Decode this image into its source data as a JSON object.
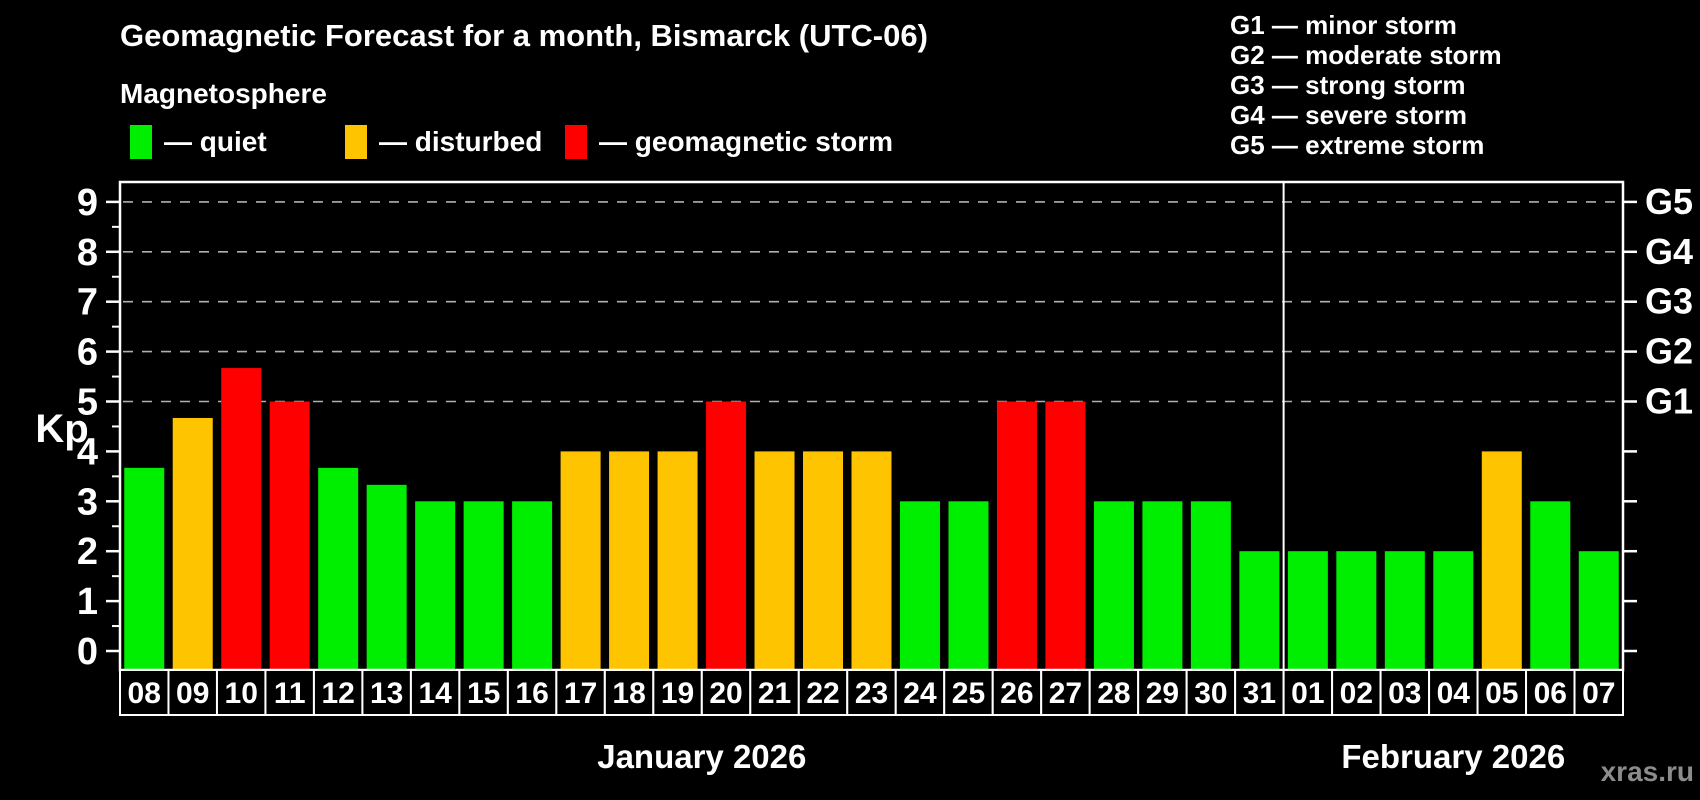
{
  "header": {
    "title": "Geomagnetic Forecast for a month, Bismarck (UTC-06)",
    "subtitle": "Magnetosphere"
  },
  "legend": {
    "items": [
      {
        "key": "quiet",
        "label": "— quiet"
      },
      {
        "key": "disturbed",
        "label": "— disturbed"
      },
      {
        "key": "storm",
        "label": "— geomagnetic storm"
      }
    ]
  },
  "g_legend": {
    "items": [
      "G1 — minor storm",
      "G2 — moderate storm",
      "G3 — strong storm",
      "G4 — severe storm",
      "G5 — extreme storm"
    ]
  },
  "watermark": "xras.ru",
  "colors": {
    "quiet": "#00ee00",
    "disturbed": "#ffc400",
    "storm": "#ff0000",
    "axis": "#ffffff",
    "grid": "#b0b0b0",
    "background": "#000000",
    "watermark": "#8c8c8c"
  },
  "chart_data": {
    "type": "bar",
    "title": "Geomagnetic Forecast for a month, Bismarck (UTC-06)",
    "ylabel": "Kp",
    "ylim": [
      0,
      9
    ],
    "yticks": [
      0,
      1,
      2,
      3,
      4,
      5,
      6,
      7,
      8,
      9
    ],
    "grid_levels": [
      5,
      6,
      7,
      8,
      9
    ],
    "right_axis": [
      {
        "label": "G5",
        "kp": 9
      },
      {
        "label": "G4",
        "kp": 8
      },
      {
        "label": "G3",
        "kp": 7
      },
      {
        "label": "G2",
        "kp": 6
      },
      {
        "label": "G1",
        "kp": 5
      }
    ],
    "categories": [
      "08",
      "09",
      "10",
      "11",
      "12",
      "13",
      "14",
      "15",
      "16",
      "17",
      "18",
      "19",
      "20",
      "21",
      "22",
      "23",
      "24",
      "25",
      "26",
      "27",
      "28",
      "29",
      "30",
      "31",
      "01",
      "02",
      "03",
      "04",
      "05",
      "06",
      "07"
    ],
    "values": [
      3.67,
      4.67,
      5.67,
      5,
      3.67,
      3.33,
      3,
      3,
      3,
      4,
      4,
      4,
      5,
      4,
      4,
      4,
      3,
      3,
      5,
      5,
      3,
      3,
      3,
      2,
      2,
      2,
      2,
      2,
      4,
      3,
      2
    ],
    "statuses": [
      "quiet",
      "disturbed",
      "storm",
      "storm",
      "quiet",
      "quiet",
      "quiet",
      "quiet",
      "quiet",
      "disturbed",
      "disturbed",
      "disturbed",
      "storm",
      "disturbed",
      "disturbed",
      "disturbed",
      "quiet",
      "quiet",
      "storm",
      "storm",
      "quiet",
      "quiet",
      "quiet",
      "quiet",
      "quiet",
      "quiet",
      "quiet",
      "quiet",
      "disturbed",
      "quiet",
      "quiet"
    ],
    "months": [
      {
        "label": "January 2026",
        "count": 24
      },
      {
        "label": "February 2026",
        "count": 7
      }
    ],
    "legend_position": "top-left",
    "grid": "dashed-on-storm-levels-only"
  }
}
